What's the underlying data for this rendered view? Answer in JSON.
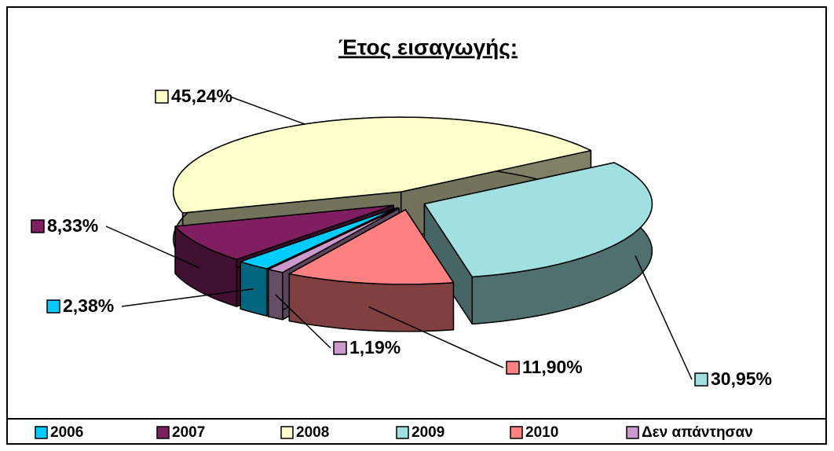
{
  "chart_data": {
    "type": "pie3d",
    "title": "Έτος εισαγωγής:",
    "categories": [
      "2006",
      "2007",
      "2008",
      "2009",
      "2010",
      "Δεν απάντησαν"
    ],
    "values": [
      2.38,
      8.33,
      45.24,
      30.95,
      11.9,
      1.19
    ],
    "value_labels": [
      "2,38%",
      "8,33%",
      "45,24%",
      "30,95%",
      "11,90%",
      "1,19%"
    ],
    "colors": [
      "#00ccff",
      "#7f1f5f",
      "#ffffcc",
      "#a0e0e0",
      "#ff8080",
      "#cc99cc"
    ],
    "legend": "bottom"
  }
}
